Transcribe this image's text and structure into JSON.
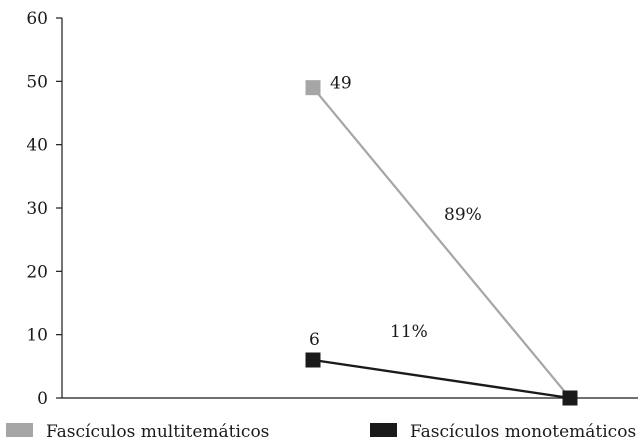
{
  "chart_data": {
    "type": "line",
    "title": "",
    "xlabel": "",
    "ylabel": "",
    "ylim": [
      0,
      60
    ],
    "yticks": [
      0,
      10,
      20,
      30,
      40,
      50,
      60
    ],
    "grid": false,
    "legend_position": "bottom",
    "x": [
      1,
      2
    ],
    "series": [
      {
        "name": "Fascículos multitemáticos",
        "color": "#a6a6a6",
        "values": [
          49,
          0
        ],
        "point_labels": [
          "49",
          ""
        ]
      },
      {
        "name": "Fascículos monotemáticos",
        "color": "#1a1a1a",
        "values": [
          6,
          0
        ],
        "point_labels": [
          "6",
          ""
        ]
      }
    ],
    "annotations": [
      {
        "text": "89%",
        "series": 0
      },
      {
        "text": "11%",
        "series": 1
      }
    ]
  }
}
